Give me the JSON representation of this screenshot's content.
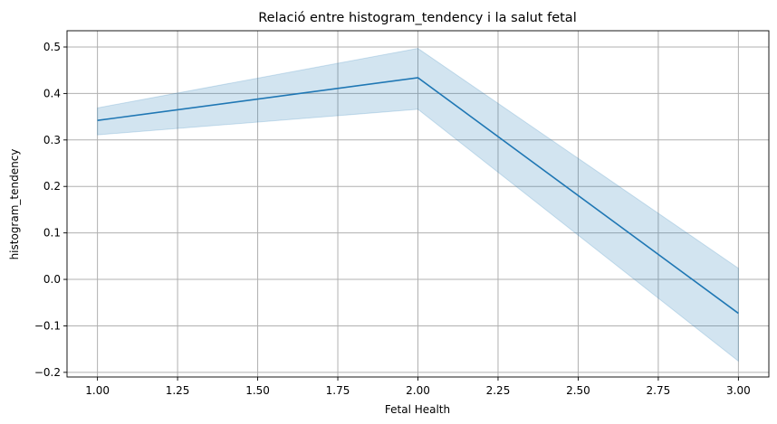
{
  "chart_data": {
    "type": "line",
    "title": "Relació entre histogram_tendency i la salut fetal",
    "xlabel": "Fetal Health",
    "ylabel": "histogram_tendency",
    "xlim": [
      0.905,
      3.095
    ],
    "ylim": [
      -0.21,
      0.535
    ],
    "xticks": [
      1.0,
      1.25,
      1.5,
      1.75,
      2.0,
      2.25,
      2.5,
      2.75,
      3.0
    ],
    "xtick_labels": [
      "1.00",
      "1.25",
      "1.50",
      "1.75",
      "2.00",
      "2.25",
      "2.50",
      "2.75",
      "3.00"
    ],
    "yticks": [
      -0.2,
      -0.1,
      0.0,
      0.1,
      0.2,
      0.3,
      0.4,
      0.5
    ],
    "ytick_labels": [
      "−0.2",
      "−0.1",
      "0.0",
      "0.1",
      "0.2",
      "0.3",
      "0.4",
      "0.5"
    ],
    "grid": true,
    "series": [
      {
        "x": [
          1.0,
          2.0,
          3.0
        ],
        "y": [
          0.342,
          0.434,
          -0.073
        ],
        "ci_lower": [
          0.311,
          0.366,
          -0.176
        ],
        "ci_upper": [
          0.369,
          0.497,
          0.024
        ],
        "color": "#1f77b4",
        "band_color": "#1f77b4"
      }
    ]
  }
}
